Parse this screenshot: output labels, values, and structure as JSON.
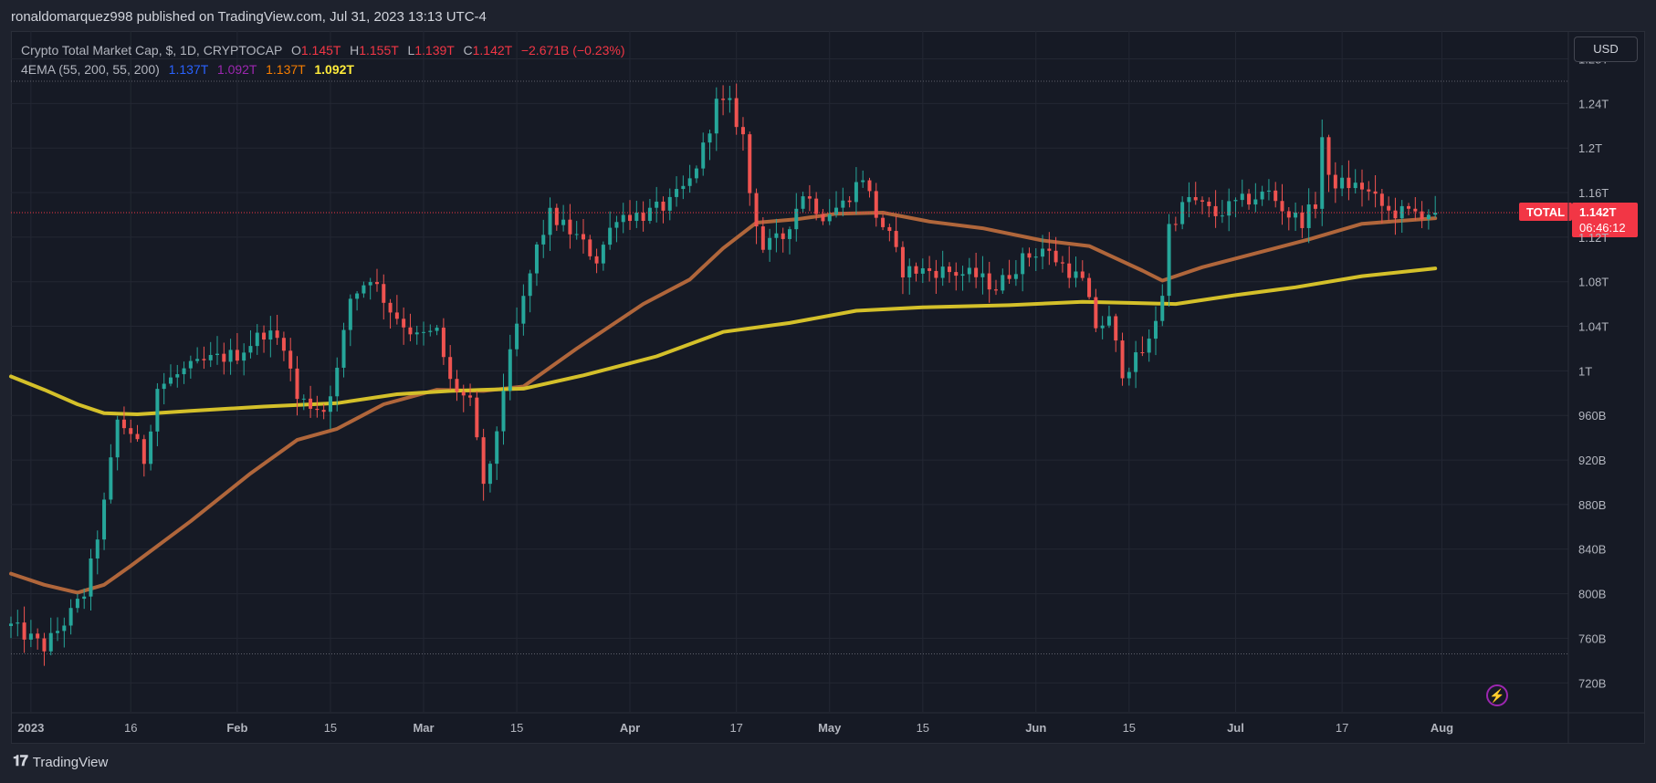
{
  "header": {
    "published_text": "ronaldomarquez998 published on TradingView.com, Jul 31, 2023 13:13 UTC-4"
  },
  "legend": {
    "symbol_line": "Crypto Total Market Cap, $, 1D, CRYPTOCAP",
    "ohlc": {
      "o_label": "O",
      "o": "1.145T",
      "h_label": "H",
      "h": "1.155T",
      "l_label": "L",
      "l": "1.139T",
      "c_label": "C",
      "c": "1.142T",
      "change": "−2.671B (−0.23%)"
    },
    "ema_line": "4EMA (55, 200, 55, 200)",
    "ema_values": [
      "1.137T",
      "1.092T",
      "1.137T",
      "1.092T"
    ],
    "ema_value_colors": [
      "#2962ff",
      "#9c27b0",
      "#f57c00",
      "#ffeb3b"
    ]
  },
  "price_scale": {
    "currency": "USD"
  },
  "price_badge": {
    "symbol": "TOTAL",
    "price": "1.142T",
    "countdown": "06:46:12"
  },
  "footer": {
    "brand": "TradingView"
  },
  "colors": {
    "up": "#26a69a",
    "down": "#ef5350",
    "ema_fast": "#b0663b",
    "ema_slow": "#d4c02a",
    "badge": "#f23645"
  },
  "chart_data": {
    "type": "candlestick",
    "title": "Crypto Total Market Cap, $, 1D, CRYPTOCAP",
    "y_ticks": [
      "1.28T",
      "1.24T",
      "1.2T",
      "1.16T",
      "1.12T",
      "1.08T",
      "1.04T",
      "1T",
      "960B",
      "920B",
      "880B",
      "840B",
      "800B",
      "760B",
      "720B"
    ],
    "y_tick_values": [
      1280,
      1240,
      1200,
      1160,
      1120,
      1080,
      1040,
      1000,
      960,
      920,
      880,
      840,
      800,
      760,
      720
    ],
    "y_unit": "billions USD",
    "ylim": [
      694,
      1305
    ],
    "x_ticks": [
      {
        "label": "2023",
        "date": "2023-01-01"
      },
      {
        "label": "16",
        "date": "2023-01-16"
      },
      {
        "label": "Feb",
        "date": "2023-02-01"
      },
      {
        "label": "15",
        "date": "2023-02-15"
      },
      {
        "label": "Mar",
        "date": "2023-03-01"
      },
      {
        "label": "15",
        "date": "2023-03-15"
      },
      {
        "label": "Apr",
        "date": "2023-04-01"
      },
      {
        "label": "17",
        "date": "2023-04-17"
      },
      {
        "label": "May",
        "date": "2023-05-01"
      },
      {
        "label": "15",
        "date": "2023-05-15"
      },
      {
        "label": "Jun",
        "date": "2023-06-01"
      },
      {
        "label": "15",
        "date": "2023-06-15"
      },
      {
        "label": "Jul",
        "date": "2023-07-01"
      },
      {
        "label": "17",
        "date": "2023-07-17"
      },
      {
        "label": "Aug",
        "date": "2023-08-01"
      }
    ],
    "xlim": [
      "2022-12-29",
      "2023-08-20"
    ],
    "range_lines": [
      1260,
      746
    ],
    "last_price": 1142,
    "close_path": [
      [
        "2022-12-29",
        771
      ],
      [
        "2023-01-03",
        752
      ],
      [
        "2023-01-07",
        782
      ],
      [
        "2023-01-09",
        800
      ],
      [
        "2023-01-10",
        825
      ],
      [
        "2023-01-12",
        880
      ],
      [
        "2023-01-14",
        955
      ],
      [
        "2023-01-16",
        945
      ],
      [
        "2023-01-18",
        920
      ],
      [
        "2023-01-20",
        985
      ],
      [
        "2023-01-24",
        1000
      ],
      [
        "2023-01-28",
        1010
      ],
      [
        "2023-02-01",
        1015
      ],
      [
        "2023-02-05",
        1035
      ],
      [
        "2023-02-08",
        1025
      ],
      [
        "2023-02-10",
        975
      ],
      [
        "2023-02-14",
        965
      ],
      [
        "2023-02-16",
        1000
      ],
      [
        "2023-02-18",
        1065
      ],
      [
        "2023-02-21",
        1085
      ],
      [
        "2023-02-24",
        1055
      ],
      [
        "2023-02-28",
        1030
      ],
      [
        "2023-03-03",
        1035
      ],
      [
        "2023-03-05",
        990
      ],
      [
        "2023-03-08",
        970
      ],
      [
        "2023-03-10",
        900
      ],
      [
        "2023-03-11",
        910
      ],
      [
        "2023-03-13",
        985
      ],
      [
        "2023-03-15",
        1040
      ],
      [
        "2023-03-18",
        1110
      ],
      [
        "2023-03-20",
        1140
      ],
      [
        "2023-03-24",
        1120
      ],
      [
        "2023-03-27",
        1100
      ],
      [
        "2023-03-30",
        1140
      ],
      [
        "2023-04-03",
        1140
      ],
      [
        "2023-04-07",
        1150
      ],
      [
        "2023-04-10",
        1170
      ],
      [
        "2023-04-12",
        1200
      ],
      [
        "2023-04-14",
        1240
      ],
      [
        "2023-04-16",
        1238
      ],
      [
        "2023-04-18",
        1210
      ],
      [
        "2023-04-19",
        1160
      ],
      [
        "2023-04-21",
        1110
      ],
      [
        "2023-04-24",
        1120
      ],
      [
        "2023-04-27",
        1160
      ],
      [
        "2023-04-30",
        1140
      ],
      [
        "2023-05-03",
        1150
      ],
      [
        "2023-05-06",
        1175
      ],
      [
        "2023-05-08",
        1140
      ],
      [
        "2023-05-10",
        1120
      ],
      [
        "2023-05-12",
        1090
      ],
      [
        "2023-05-18",
        1090
      ],
      [
        "2023-05-23",
        1085
      ],
      [
        "2023-05-26",
        1075
      ],
      [
        "2023-05-30",
        1100
      ],
      [
        "2023-06-02",
        1110
      ],
      [
        "2023-06-06",
        1090
      ],
      [
        "2023-06-08",
        1080
      ],
      [
        "2023-06-10",
        1040
      ],
      [
        "2023-06-12",
        1045
      ],
      [
        "2023-06-14",
        1000
      ],
      [
        "2023-06-16",
        1010
      ],
      [
        "2023-06-18",
        1025
      ],
      [
        "2023-06-20",
        1070
      ],
      [
        "2023-06-21",
        1130
      ],
      [
        "2023-06-24",
        1155
      ],
      [
        "2023-06-28",
        1140
      ],
      [
        "2023-07-01",
        1150
      ],
      [
        "2023-07-06",
        1160
      ],
      [
        "2023-07-09",
        1140
      ],
      [
        "2023-07-11",
        1135
      ],
      [
        "2023-07-13",
        1150
      ],
      [
        "2023-07-14",
        1210
      ],
      [
        "2023-07-15",
        1170
      ],
      [
        "2023-07-20",
        1165
      ],
      [
        "2023-07-24",
        1142
      ],
      [
        "2023-07-31",
        1142
      ]
    ],
    "series": [
      {
        "name": "EMA 55",
        "color": "#b0663b",
        "points": [
          [
            "2022-12-29",
            818
          ],
          [
            "2023-01-03",
            808
          ],
          [
            "2023-01-08",
            801
          ],
          [
            "2023-01-12",
            808
          ],
          [
            "2023-01-16",
            825
          ],
          [
            "2023-01-25",
            865
          ],
          [
            "2023-02-03",
            908
          ],
          [
            "2023-02-10",
            938
          ],
          [
            "2023-02-16",
            948
          ],
          [
            "2023-02-23",
            970
          ],
          [
            "2023-03-03",
            983
          ],
          [
            "2023-03-10",
            982
          ],
          [
            "2023-03-16",
            986
          ],
          [
            "2023-03-24",
            1020
          ],
          [
            "2023-04-03",
            1060
          ],
          [
            "2023-04-10",
            1082
          ],
          [
            "2023-04-15",
            1110
          ],
          [
            "2023-04-20",
            1133
          ],
          [
            "2023-04-26",
            1136
          ],
          [
            "2023-05-02",
            1141
          ],
          [
            "2023-05-09",
            1142
          ],
          [
            "2023-05-16",
            1134
          ],
          [
            "2023-05-24",
            1128
          ],
          [
            "2023-06-02",
            1117
          ],
          [
            "2023-06-09",
            1112
          ],
          [
            "2023-06-17",
            1090
          ],
          [
            "2023-06-20",
            1081
          ],
          [
            "2023-06-26",
            1093
          ],
          [
            "2023-07-05",
            1107
          ],
          [
            "2023-07-12",
            1118
          ],
          [
            "2023-07-20",
            1132
          ],
          [
            "2023-07-31",
            1137
          ]
        ]
      },
      {
        "name": "EMA 200",
        "color": "#d4c02a",
        "points": [
          [
            "2022-12-29",
            995
          ],
          [
            "2023-01-03",
            983
          ],
          [
            "2023-01-08",
            970
          ],
          [
            "2023-01-12",
            962
          ],
          [
            "2023-01-17",
            961
          ],
          [
            "2023-01-25",
            964
          ],
          [
            "2023-02-05",
            968
          ],
          [
            "2023-02-16",
            971
          ],
          [
            "2023-02-25",
            979
          ],
          [
            "2023-03-05",
            982
          ],
          [
            "2023-03-10",
            983
          ],
          [
            "2023-03-16",
            984
          ],
          [
            "2023-03-25",
            996
          ],
          [
            "2023-04-05",
            1013
          ],
          [
            "2023-04-15",
            1035
          ],
          [
            "2023-04-25",
            1043
          ],
          [
            "2023-05-05",
            1054
          ],
          [
            "2023-05-15",
            1057
          ],
          [
            "2023-05-28",
            1059
          ],
          [
            "2023-06-08",
            1062
          ],
          [
            "2023-06-15",
            1061
          ],
          [
            "2023-06-22",
            1060
          ],
          [
            "2023-07-01",
            1068
          ],
          [
            "2023-07-10",
            1075
          ],
          [
            "2023-07-20",
            1085
          ],
          [
            "2023-07-31",
            1092
          ]
        ]
      }
    ]
  }
}
